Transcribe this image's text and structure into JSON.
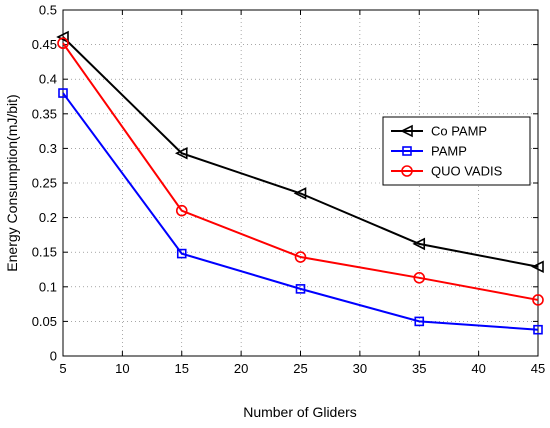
{
  "chart_data": {
    "type": "line",
    "x": [
      5,
      15,
      25,
      35,
      45
    ],
    "xlabel": "Number of Gliders",
    "ylabel": "Energy Consumption(mJ/bit)",
    "xlim": [
      5,
      45
    ],
    "ylim": [
      0,
      0.5
    ],
    "xticks": [
      "5",
      "10",
      "15",
      "20",
      "25",
      "30",
      "35",
      "40",
      "45"
    ],
    "yticks": [
      "0",
      "0.05",
      "0.1",
      "0.15",
      "0.2",
      "0.25",
      "0.3",
      "0.35",
      "0.4",
      "0.45",
      "0.5"
    ],
    "grid": true,
    "legend_position": "top-right",
    "series": [
      {
        "name": "Co PAMP",
        "color": "#000000",
        "marker": "triangle-left",
        "values": [
          0.461,
          0.293,
          0.235,
          0.162,
          0.129
        ]
      },
      {
        "name": "PAMP",
        "color": "#0000ff",
        "marker": "square",
        "values": [
          0.38,
          0.148,
          0.097,
          0.05,
          0.038
        ]
      },
      {
        "name": "QUO VADIS",
        "color": "#ff0000",
        "marker": "circle",
        "values": [
          0.452,
          0.21,
          0.143,
          0.113,
          0.081
        ]
      }
    ]
  }
}
